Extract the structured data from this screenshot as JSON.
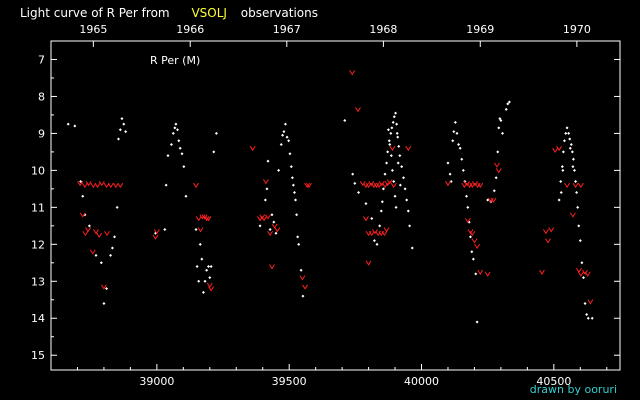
{
  "chart_data": {
    "type": "scatter",
    "title_prefix": "Light curve of R Per from",
    "title_source": "VSOLJ",
    "title_suffix": "observations",
    "annotation": "R Per (M)",
    "credit": "drawn by ooruri",
    "x_range": [
      38600,
      40750
    ],
    "y_range": [
      15.4,
      6.5
    ],
    "y_reversed": true,
    "x_ticks": [
      39000,
      39500,
      40000,
      40500
    ],
    "x_tick_labels": [
      "39000",
      "39500",
      "40000",
      "40500"
    ],
    "y_ticks": [
      7,
      8,
      9,
      10,
      11,
      12,
      13,
      14,
      15
    ],
    "y_tick_labels": [
      "7",
      "8",
      "9",
      "10",
      "11",
      "12",
      "13",
      "14",
      "15"
    ],
    "top_axis_years": [
      {
        "label": "1965",
        "x": 38760
      },
      {
        "label": "1966",
        "x": 39126
      },
      {
        "label": "1967",
        "x": 39491
      },
      {
        "label": "1968",
        "x": 39856
      },
      {
        "label": "1969",
        "x": 40222
      },
      {
        "label": "1970",
        "x": 40587
      }
    ],
    "colors": {
      "observation": "#ffffff",
      "fainter_than": "#ff2020",
      "title_accent": "#ffff33",
      "credit": "#33cccc"
    },
    "series": [
      {
        "name": "observations",
        "marker": "dot",
        "points": [
          [
            38665,
            8.75
          ],
          [
            38690,
            8.8
          ],
          [
            38712,
            10.3
          ],
          [
            38720,
            10.7
          ],
          [
            38728,
            11.2
          ],
          [
            38745,
            11.5
          ],
          [
            38770,
            12.3
          ],
          [
            38790,
            12.5
          ],
          [
            38800,
            13.6
          ],
          [
            38810,
            13.2
          ],
          [
            38825,
            12.3
          ],
          [
            38832,
            12.1
          ],
          [
            38840,
            11.8
          ],
          [
            38850,
            11.0
          ],
          [
            38855,
            9.15
          ],
          [
            38862,
            8.9
          ],
          [
            38868,
            8.6
          ],
          [
            38875,
            8.75
          ],
          [
            38882,
            8.95
          ],
          [
            38995,
            11.7
          ],
          [
            39030,
            11.6
          ],
          [
            39035,
            10.4
          ],
          [
            39042,
            9.6
          ],
          [
            39055,
            9.3
          ],
          [
            39062,
            9.0
          ],
          [
            39068,
            8.85
          ],
          [
            39072,
            8.75
          ],
          [
            39078,
            8.9
          ],
          [
            39083,
            9.2
          ],
          [
            39088,
            9.4
          ],
          [
            39095,
            9.55
          ],
          [
            39102,
            9.9
          ],
          [
            39110,
            10.7
          ],
          [
            39148,
            11.6
          ],
          [
            39152,
            12.6
          ],
          [
            39158,
            13.0
          ],
          [
            39164,
            12.0
          ],
          [
            39170,
            12.4
          ],
          [
            39176,
            13.3
          ],
          [
            39182,
            13.0
          ],
          [
            39188,
            12.7
          ],
          [
            39195,
            12.6
          ],
          [
            39200,
            12.9
          ],
          [
            39205,
            12.6
          ],
          [
            39215,
            9.5
          ],
          [
            39225,
            9.0
          ],
          [
            39390,
            11.5
          ],
          [
            39410,
            10.8
          ],
          [
            39416,
            10.5
          ],
          [
            39420,
            9.75
          ],
          [
            39428,
            11.6
          ],
          [
            39435,
            11.2
          ],
          [
            39442,
            11.4
          ],
          [
            39450,
            11.7
          ],
          [
            39460,
            10.0
          ],
          [
            39470,
            9.3
          ],
          [
            39475,
            9.05
          ],
          [
            39480,
            8.95
          ],
          [
            39486,
            8.75
          ],
          [
            39492,
            9.1
          ],
          [
            39498,
            9.2
          ],
          [
            39503,
            9.55
          ],
          [
            39508,
            9.9
          ],
          [
            39512,
            10.2
          ],
          [
            39516,
            10.4
          ],
          [
            39520,
            10.6
          ],
          [
            39524,
            10.8
          ],
          [
            39528,
            11.2
          ],
          [
            39532,
            11.8
          ],
          [
            39536,
            12.0
          ],
          [
            39545,
            12.7
          ],
          [
            39552,
            13.4
          ],
          [
            39710,
            8.65
          ],
          [
            39740,
            10.1
          ],
          [
            39748,
            10.35
          ],
          [
            39762,
            10.6
          ],
          [
            39790,
            10.9
          ],
          [
            39812,
            11.3
          ],
          [
            39822,
            11.9
          ],
          [
            39832,
            12.0
          ],
          [
            39842,
            11.5
          ],
          [
            39848,
            11.1
          ],
          [
            39852,
            10.85
          ],
          [
            39856,
            10.5
          ],
          [
            39862,
            10.1
          ],
          [
            39868,
            9.8
          ],
          [
            39872,
            9.5
          ],
          [
            39878,
            9.2
          ],
          [
            39884,
            9.0
          ],
          [
            39888,
            8.85
          ],
          [
            39893,
            8.7
          ],
          [
            39897,
            8.55
          ],
          [
            39902,
            8.45
          ],
          [
            39906,
            8.75
          ],
          [
            39910,
            9.1
          ],
          [
            39914,
            9.35
          ],
          [
            39918,
            9.6
          ],
          [
            39925,
            9.9
          ],
          [
            39932,
            10.2
          ],
          [
            39938,
            10.5
          ],
          [
            39944,
            10.8
          ],
          [
            39950,
            11.1
          ],
          [
            39955,
            11.5
          ],
          [
            39965,
            12.1
          ],
          [
            39875,
            8.9
          ],
          [
            39880,
            9.3
          ],
          [
            39886,
            9.6
          ],
          [
            39890,
            10.0
          ],
          [
            39895,
            10.3
          ],
          [
            39900,
            10.7
          ],
          [
            39904,
            11.0
          ],
          [
            39908,
            9.0
          ],
          [
            39912,
            9.8
          ],
          [
            39920,
            10.4
          ],
          [
            40100,
            9.8
          ],
          [
            40108,
            10.1
          ],
          [
            40112,
            10.3
          ],
          [
            40118,
            9.2
          ],
          [
            40122,
            8.95
          ],
          [
            40128,
            8.7
          ],
          [
            40134,
            9.0
          ],
          [
            40140,
            9.3
          ],
          [
            40146,
            9.4
          ],
          [
            40152,
            9.7
          ],
          [
            40158,
            10.0
          ],
          [
            40164,
            10.3
          ],
          [
            40170,
            10.7
          ],
          [
            40175,
            11.0
          ],
          [
            40180,
            11.4
          ],
          [
            40185,
            11.8
          ],
          [
            40190,
            12.2
          ],
          [
            40196,
            12.4
          ],
          [
            40205,
            12.8
          ],
          [
            40210,
            14.1
          ],
          [
            40250,
            10.8
          ],
          [
            40262,
            10.85
          ],
          [
            40275,
            10.55
          ],
          [
            40282,
            10.2
          ],
          [
            40288,
            9.5
          ],
          [
            40292,
            8.85
          ],
          [
            40296,
            8.6
          ],
          [
            40300,
            8.65
          ],
          [
            40306,
            9.0
          ],
          [
            40320,
            8.35
          ],
          [
            40326,
            8.2
          ],
          [
            40332,
            8.15
          ],
          [
            40520,
            10.8
          ],
          [
            40526,
            10.3
          ],
          [
            40532,
            9.9
          ],
          [
            40536,
            9.5
          ],
          [
            40540,
            9.2
          ],
          [
            40545,
            9.0
          ],
          [
            40550,
            8.85
          ],
          [
            40556,
            9.0
          ],
          [
            40560,
            9.15
          ],
          [
            40566,
            9.3
          ],
          [
            40570,
            9.5
          ],
          [
            40574,
            9.7
          ],
          [
            40578,
            10.0
          ],
          [
            40582,
            10.3
          ],
          [
            40586,
            10.6
          ],
          [
            40590,
            11.0
          ],
          [
            40594,
            11.5
          ],
          [
            40600,
            11.9
          ],
          [
            40606,
            12.5
          ],
          [
            40612,
            12.9
          ],
          [
            40618,
            13.6
          ],
          [
            40624,
            13.9
          ],
          [
            40630,
            14.0
          ],
          [
            40645,
            14.0
          ],
          [
            40528,
            10.6
          ],
          [
            40534,
            10.0
          ],
          [
            40562,
            9.4
          ],
          [
            40572,
            9.9
          ]
        ]
      },
      {
        "name": "fainter-than",
        "marker": "v",
        "points": [
          [
            38710,
            10.35
          ],
          [
            38728,
            10.4
          ],
          [
            38742,
            10.35
          ],
          [
            38760,
            10.4
          ],
          [
            38776,
            10.4
          ],
          [
            38792,
            10.35
          ],
          [
            38810,
            10.4
          ],
          [
            38826,
            10.4
          ],
          [
            38845,
            10.4
          ],
          [
            38862,
            10.4
          ],
          [
            38720,
            11.2
          ],
          [
            38730,
            11.7
          ],
          [
            38740,
            11.6
          ],
          [
            38758,
            12.2
          ],
          [
            38770,
            11.65
          ],
          [
            38782,
            11.75
          ],
          [
            38800,
            13.15
          ],
          [
            38812,
            11.7
          ],
          [
            38995,
            11.8
          ],
          [
            39000,
            11.65
          ],
          [
            39148,
            10.4
          ],
          [
            39158,
            11.3
          ],
          [
            39165,
            11.6
          ],
          [
            39172,
            11.25
          ],
          [
            39180,
            11.25
          ],
          [
            39188,
            11.3
          ],
          [
            39195,
            11.3
          ],
          [
            39200,
            13.1
          ],
          [
            39205,
            13.2
          ],
          [
            39362,
            9.4
          ],
          [
            39390,
            11.3
          ],
          [
            39398,
            11.25
          ],
          [
            39405,
            11.3
          ],
          [
            39412,
            10.3
          ],
          [
            39420,
            11.25
          ],
          [
            39428,
            11.7
          ],
          [
            39435,
            12.6
          ],
          [
            39445,
            11.5
          ],
          [
            39455,
            11.6
          ],
          [
            39550,
            12.9
          ],
          [
            39560,
            13.15
          ],
          [
            39568,
            10.4
          ],
          [
            39575,
            10.4
          ],
          [
            39738,
            7.35
          ],
          [
            39760,
            8.35
          ],
          [
            39778,
            10.35
          ],
          [
            39790,
            10.4
          ],
          [
            39800,
            10.4
          ],
          [
            39810,
            10.35
          ],
          [
            39820,
            10.4
          ],
          [
            39830,
            10.4
          ],
          [
            39840,
            10.4
          ],
          [
            39850,
            10.35
          ],
          [
            39862,
            10.4
          ],
          [
            39872,
            10.35
          ],
          [
            39895,
            10.4
          ],
          [
            39790,
            11.3
          ],
          [
            39800,
            11.7
          ],
          [
            39812,
            11.7
          ],
          [
            39824,
            11.65
          ],
          [
            39836,
            11.7
          ],
          [
            39848,
            11.7
          ],
          [
            39860,
            11.7
          ],
          [
            39868,
            11.6
          ],
          [
            39880,
            10.3
          ],
          [
            39890,
            9.4
          ],
          [
            39950,
            9.4
          ],
          [
            39800,
            12.5
          ],
          [
            40100,
            10.35
          ],
          [
            40162,
            10.4
          ],
          [
            40172,
            10.35
          ],
          [
            40182,
            10.4
          ],
          [
            40192,
            10.4
          ],
          [
            40202,
            10.35
          ],
          [
            40212,
            10.4
          ],
          [
            40222,
            10.4
          ],
          [
            40175,
            11.35
          ],
          [
            40185,
            11.65
          ],
          [
            40192,
            11.7
          ],
          [
            40200,
            11.9
          ],
          [
            40210,
            12.05
          ],
          [
            40222,
            12.75
          ],
          [
            40250,
            12.8
          ],
          [
            40262,
            10.8
          ],
          [
            40272,
            10.8
          ],
          [
            40285,
            9.85
          ],
          [
            40292,
            10.0
          ],
          [
            40455,
            12.75
          ],
          [
            40470,
            11.65
          ],
          [
            40478,
            11.9
          ],
          [
            40490,
            11.6
          ],
          [
            40505,
            9.45
          ],
          [
            40520,
            9.4
          ],
          [
            40550,
            10.4
          ],
          [
            40572,
            11.2
          ],
          [
            40582,
            10.4
          ],
          [
            40595,
            12.7
          ],
          [
            40602,
            12.8
          ],
          [
            40618,
            12.75
          ],
          [
            40628,
            12.8
          ],
          [
            40638,
            13.55
          ],
          [
            40602,
            10.4
          ]
        ]
      }
    ]
  }
}
